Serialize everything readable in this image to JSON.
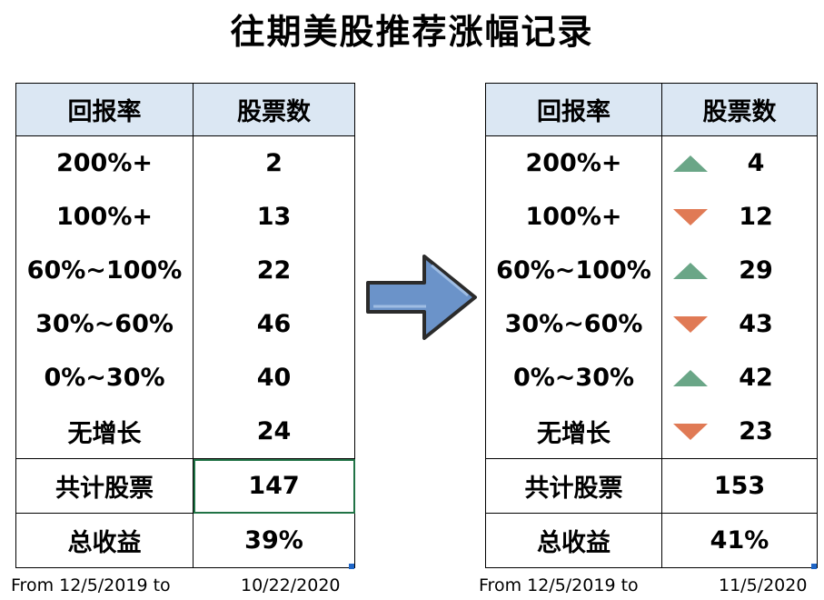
{
  "title": "往期美股推荐涨幅记录",
  "left_table": {
    "headers": [
      "回报率",
      "股票数"
    ],
    "rows": [
      {
        "range": "200%+",
        "count": "2"
      },
      {
        "range": "100%+",
        "count": "13"
      },
      {
        "range": "60%~100%",
        "count": "22"
      },
      {
        "range": "30%~60%",
        "count": "46"
      },
      {
        "range": "0%~30%",
        "count": "40"
      },
      {
        "range": "无增长",
        "count": "24"
      }
    ],
    "total_label": "共计股票",
    "total_value": "147",
    "return_label": "总收益",
    "return_value": "39%",
    "footer_from": "From 12/5/2019 to",
    "footer_to": "10/22/2020"
  },
  "right_table": {
    "headers": [
      "回报率",
      "股票数"
    ],
    "rows": [
      {
        "range": "200%+",
        "count": "4",
        "trend": "up"
      },
      {
        "range": "100%+",
        "count": "12",
        "trend": "down"
      },
      {
        "range": "60%~100%",
        "count": "29",
        "trend": "up"
      },
      {
        "range": "30%~60%",
        "count": "43",
        "trend": "down"
      },
      {
        "range": "0%~30%",
        "count": "42",
        "trend": "up"
      },
      {
        "range": "无增长",
        "count": "23",
        "trend": "down"
      }
    ],
    "total_label": "共计股票",
    "total_value": "153",
    "return_label": "总收益",
    "return_value": "41%",
    "footer_from": "From 12/5/2019 to",
    "footer_to": "11/5/2020"
  },
  "colors": {
    "header_bg": "#dbe7f3",
    "trend_up": "#6aa687",
    "trend_down": "#e07a55",
    "arrow_fill": "#6b93c9",
    "selection": "#217346"
  }
}
